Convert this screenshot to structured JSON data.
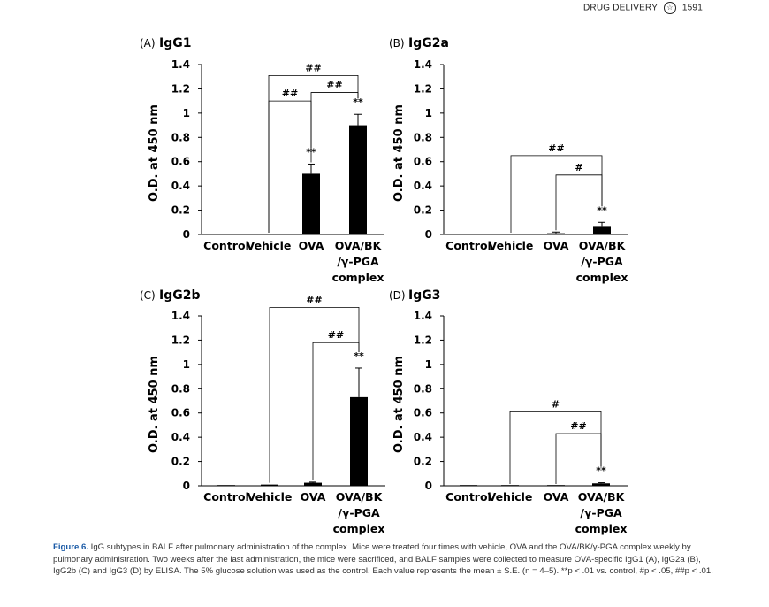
{
  "header": {
    "journal": "DRUG DELIVERY",
    "logo_glyph": "☆",
    "page": "1591"
  },
  "caption": {
    "label": "Figure 6.",
    "text": " IgG subtypes in BALF after pulmonary administration of the complex. Mice were treated four times with vehicle, OVA and the OVA/BK/γ-PGA complex weekly by pulmonary administration. Two weeks after the last administration, the mice were sacrificed, and BALF samples were collected to measure OVA-specific IgG1 (A), IgG2a (B), IgG2b (C) and IgG3 (D) by ELISA. The 5% glucose solution was used as the control. Each value represents the mean ± S.E. (n = 4–5). **p < .01 vs. control, #p < .05, ##p < .01."
  },
  "chart_data": [
    {
      "type": "bar",
      "panel": "(A)",
      "title": "IgG1",
      "ylabel": "O.D. at 450 nm",
      "ylim": [
        0,
        1.4
      ],
      "yticks": [
        "0",
        "0.2",
        "0.4",
        "0.6",
        "0.8",
        "1",
        "1.2",
        "1.4"
      ],
      "categories": [
        "Control",
        "Vehicle",
        "OVA",
        "OVA/BK\n/γ-PGA\ncomplex"
      ],
      "values": [
        0.0,
        0.0,
        0.5,
        0.9
      ],
      "errors": [
        0.0,
        0.0,
        0.08,
        0.09
      ],
      "stars": [
        "",
        "",
        "**",
        "**"
      ],
      "brackets": [
        {
          "from": 1,
          "to": 2,
          "label": "##",
          "y": 1.1
        },
        {
          "from": 2,
          "to": 3,
          "label": "##",
          "y": 1.17
        },
        {
          "from": 1,
          "to": 3,
          "label": "##",
          "y": 1.31
        }
      ]
    },
    {
      "type": "bar",
      "panel": "(B)",
      "title": "IgG2a",
      "ylabel": "O.D. at 450 nm",
      "ylim": [
        0,
        1.4
      ],
      "yticks": [
        "0",
        "0.2",
        "0.4",
        "0.6",
        "0.8",
        "1",
        "1.2",
        "1.4"
      ],
      "categories": [
        "Control",
        "Vehicle",
        "OVA",
        "OVA/BK\n/γ-PGA\ncomplex"
      ],
      "values": [
        0.0,
        0.0,
        0.01,
        0.07
      ],
      "errors": [
        0.0,
        0.0,
        0.01,
        0.03
      ],
      "stars": [
        "",
        "",
        "",
        "**"
      ],
      "brackets": [
        {
          "from": 2,
          "to": 3,
          "label": "#",
          "y": 0.49
        },
        {
          "from": 1,
          "to": 3,
          "label": "##",
          "y": 0.65
        }
      ]
    },
    {
      "type": "bar",
      "panel": "(C)",
      "title": "IgG2b",
      "ylabel": "O.D. at 450 nm",
      "ylim": [
        0,
        1.4
      ],
      "yticks": [
        "0",
        "0.2",
        "0.4",
        "0.6",
        "0.8",
        "1",
        "1.2",
        "1.4"
      ],
      "categories": [
        "Control",
        "Vehicle",
        "OVA",
        "OVA/BK\n/γ-PGA\ncomplex"
      ],
      "values": [
        0.005,
        0.01,
        0.025,
        0.73
      ],
      "errors": [
        0.0,
        0.0,
        0.005,
        0.24
      ],
      "stars": [
        "",
        "",
        "",
        "**"
      ],
      "brackets": [
        {
          "from": 2,
          "to": 3,
          "label": "##",
          "y": 1.18
        },
        {
          "from": 1,
          "to": 3,
          "label": "##",
          "y": 1.47
        }
      ]
    },
    {
      "type": "bar",
      "panel": "(D)",
      "title": "IgG3",
      "ylabel": "O.D. at 450 nm",
      "ylim": [
        0,
        1.4
      ],
      "yticks": [
        "0",
        "0.2",
        "0.4",
        "0.6",
        "0.8",
        "1",
        "1.2",
        "1.4"
      ],
      "categories": [
        "Control",
        "Vehicle",
        "OVA",
        "OVA/BK\n/γ-PGA\ncomplex"
      ],
      "values": [
        0.0,
        0.0,
        0.0,
        0.02
      ],
      "errors": [
        0.0,
        0.0,
        0.0,
        0.005
      ],
      "stars": [
        "",
        "",
        "",
        "**"
      ],
      "brackets": [
        {
          "from": 2,
          "to": 3,
          "label": "##",
          "y": 0.43
        },
        {
          "from": 1,
          "to": 3,
          "label": "#",
          "y": 0.61
        }
      ]
    }
  ]
}
